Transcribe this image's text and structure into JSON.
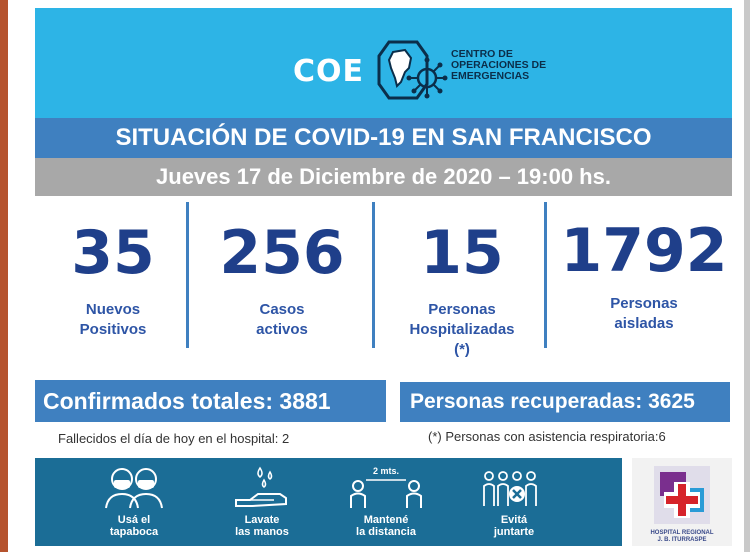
{
  "header": {
    "logo_abbr": "COE",
    "logo_line1": "CENTRO DE",
    "logo_line2": "OPERACIONES DE",
    "logo_line3": "EMERGENCIAS",
    "background_color": "#2db4e6"
  },
  "title": "SITUACIÓN DE COVID-19 EN SAN FRANCISCO",
  "date": "Jueves 17 de Diciembre de 2020 – 19:00 hs.",
  "stats": [
    {
      "value": "35",
      "label_line1": "Nuevos",
      "label_line2": "Positivos",
      "label_line3": ""
    },
    {
      "value": "256",
      "label_line1": "Casos",
      "label_line2": "activos",
      "label_line3": ""
    },
    {
      "value": "15",
      "label_line1": "Personas",
      "label_line2": "Hospitalizadas",
      "label_line3": "(*)"
    },
    {
      "value": "1792",
      "label_line1": "Personas",
      "label_line2": "aisladas",
      "label_line3": ""
    }
  ],
  "confirmed": "Confirmados totales: 3881",
  "recovered": "Personas recuperadas: 3625",
  "deaths_note": "Fallecidos el día de hoy en el hospital: 2",
  "respiratory_note": "(*) Personas con asistencia respiratoria:6",
  "tips": [
    {
      "icon": "mask-icon",
      "line1": "Usá el",
      "line2": "tapaboca"
    },
    {
      "icon": "handwash-icon",
      "line1": "Lavate",
      "line2": "las manos"
    },
    {
      "icon": "distance-icon",
      "line1": "Mantené",
      "line2": "la distancia",
      "distance_label": "2 mts."
    },
    {
      "icon": "group-crossed-icon",
      "line1": "Evitá",
      "line2": "juntarte"
    }
  ],
  "hospital": {
    "line1": "HOSPITAL REGIONAL",
    "line2": "J. B. ITURRASPE"
  },
  "colors": {
    "accent_blue": "#3f80c0",
    "number_blue": "#1f3f8a",
    "footer_teal": "#1b6d96",
    "date_gray": "#a8a8a8"
  }
}
